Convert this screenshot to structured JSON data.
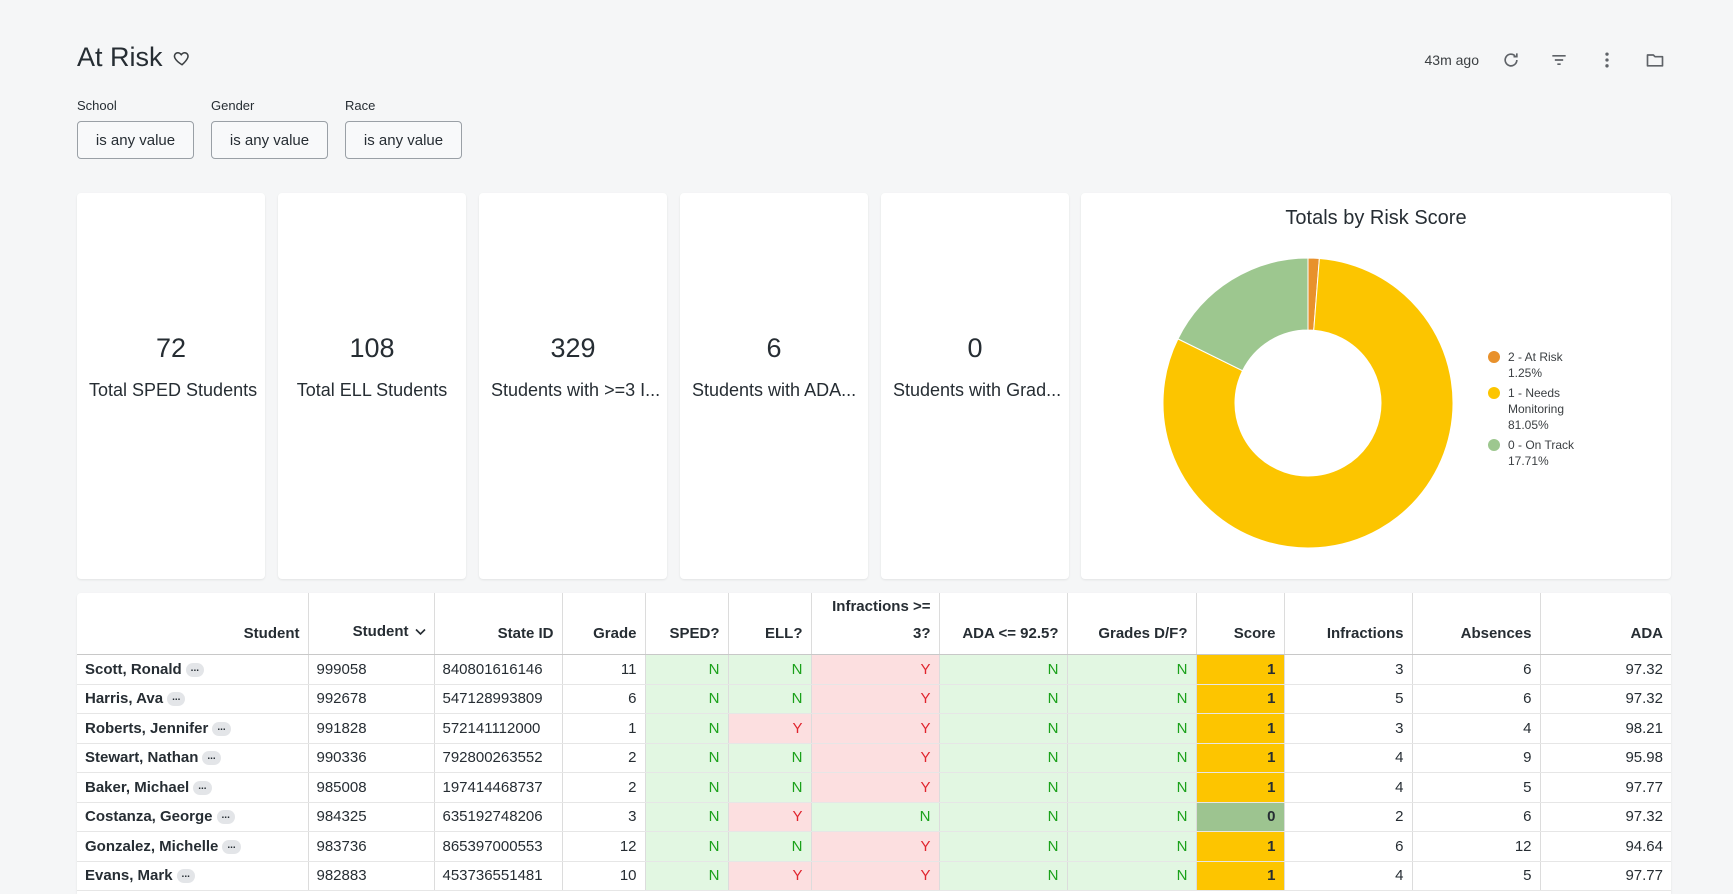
{
  "header": {
    "title": "At Risk",
    "updated": "43m ago"
  },
  "filters": [
    {
      "label": "School",
      "value": "is any value"
    },
    {
      "label": "Gender",
      "value": "is any value"
    },
    {
      "label": "Race",
      "value": "is any value"
    }
  ],
  "kpis": [
    {
      "value": "72",
      "label": "Total SPED Students"
    },
    {
      "value": "108",
      "label": "Total ELL Students"
    },
    {
      "value": "329",
      "label": "Students with >=3 I..."
    },
    {
      "value": "6",
      "label": "Students with ADA..."
    },
    {
      "value": "0",
      "label": "Students with Grad..."
    }
  ],
  "chart_data": {
    "type": "pie",
    "title": "Totals by Risk Score",
    "donut": true,
    "slices": [
      {
        "name": "2 - At Risk",
        "pct": "1.25%",
        "value": 1.25,
        "color": "#e8912c"
      },
      {
        "name": "1 - Needs Monitoring",
        "pct": "81.05%",
        "value": 81.05,
        "color": "#fcc500"
      },
      {
        "name": "0 - On Track",
        "pct": "17.71%",
        "value": 17.71,
        "color": "#9dc78f"
      }
    ],
    "legend_position": "right"
  },
  "table": {
    "columns": [
      "Student",
      "Student",
      "State ID",
      "Grade",
      "SPED?",
      "ELL?",
      "Infractions >= 3?",
      "ADA <= 92.5?",
      "Grades D/F?",
      "Score",
      "Infractions",
      "Absences",
      "ADA"
    ],
    "more_label": "...",
    "rows": [
      [
        "Scott, Ronald",
        "999058",
        "840801616146",
        "11",
        "N",
        "N",
        "Y",
        "N",
        "N",
        "1",
        "3",
        "6",
        "97.32"
      ],
      [
        "Harris, Ava",
        "992678",
        "547128993809",
        "6",
        "N",
        "N",
        "Y",
        "N",
        "N",
        "1",
        "5",
        "6",
        "97.32"
      ],
      [
        "Roberts, Jennifer",
        "991828",
        "572141112000",
        "1",
        "N",
        "Y",
        "Y",
        "N",
        "N",
        "1",
        "3",
        "4",
        "98.21"
      ],
      [
        "Stewart, Nathan",
        "990336",
        "792800263552",
        "2",
        "N",
        "N",
        "Y",
        "N",
        "N",
        "1",
        "4",
        "9",
        "95.98"
      ],
      [
        "Baker, Michael",
        "985008",
        "197414468737",
        "2",
        "N",
        "N",
        "Y",
        "N",
        "N",
        "1",
        "4",
        "5",
        "97.77"
      ],
      [
        "Costanza, George",
        "984325",
        "635192748206",
        "3",
        "N",
        "Y",
        "N",
        "N",
        "N",
        "0",
        "2",
        "6",
        "97.32"
      ],
      [
        "Gonzalez, Michelle",
        "983736",
        "865397000553",
        "12",
        "N",
        "N",
        "Y",
        "N",
        "N",
        "1",
        "6",
        "12",
        "94.64"
      ],
      [
        "Evans, Mark",
        "982883",
        "453736551481",
        "10",
        "N",
        "Y",
        "Y",
        "N",
        "N",
        "1",
        "4",
        "5",
        "97.77"
      ]
    ]
  }
}
